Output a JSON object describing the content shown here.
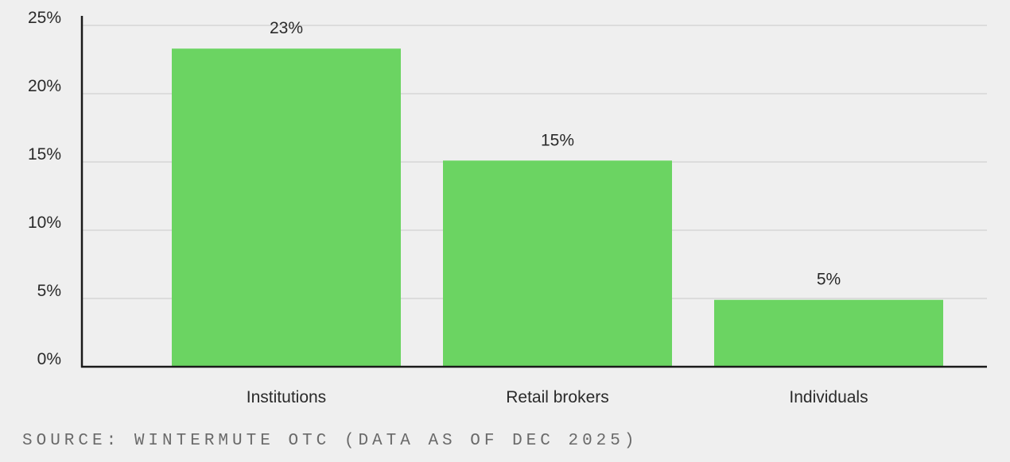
{
  "chart_data": {
    "type": "bar",
    "categories": [
      "Institutions",
      "Retail brokers",
      "Individuals"
    ],
    "values": [
      23.3,
      15.1,
      4.9
    ],
    "data_labels": [
      "23%",
      "15%",
      "5%"
    ],
    "ylim": [
      0,
      25
    ],
    "yticks": [
      0,
      5,
      10,
      15,
      20,
      25
    ],
    "ytick_labels": [
      "0%",
      "5%",
      "10%",
      "15%",
      "20%",
      "25%"
    ],
    "grid": true,
    "bar_color": "#6bd462",
    "grid_color": "#d6d6d6",
    "axis_color": "#1a1a1a"
  },
  "source_note": "SOURCE: WINTERMUTE OTC (DATA AS OF DEC 2025)"
}
